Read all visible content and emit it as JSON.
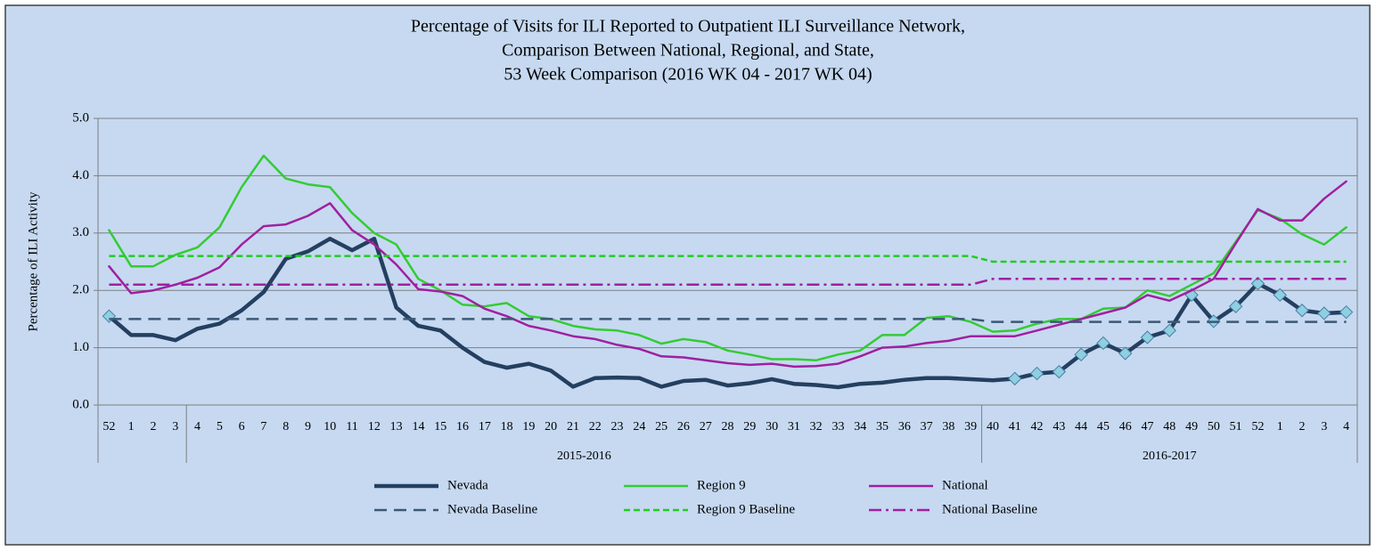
{
  "chart_data": {
    "type": "line",
    "title": [
      "Percentage of Visits for ILI Reported to Outpatient ILI Surveillance Network,",
      "Comparison Between National, Regional, and State,",
      "53 Week Comparison (2016 WK 04 - 2017 WK 04)"
    ],
    "y_label": "Percentage of ILI Activity",
    "groups": [
      {
        "label": null,
        "categories": [
          "52",
          "1",
          "2",
          "3"
        ]
      },
      {
        "label": "2015-2016",
        "categories": [
          "4",
          "5",
          "6",
          "7",
          "8",
          "9",
          "10",
          "11",
          "12",
          "13",
          "14",
          "15",
          "16",
          "17",
          "18",
          "19",
          "20",
          "21",
          "22",
          "23",
          "24",
          "25",
          "26",
          "27",
          "28",
          "29",
          "30",
          "31",
          "32",
          "33",
          "34",
          "35",
          "36",
          "37",
          "38",
          "39"
        ]
      },
      {
        "label": "2016-2017",
        "categories": [
          "40",
          "41",
          "42",
          "43",
          "44",
          "45",
          "46",
          "47",
          "48",
          "49",
          "50",
          "51",
          "52",
          "1",
          "2",
          "3",
          "4"
        ]
      }
    ],
    "ylim": [
      0,
      5
    ],
    "yticks": [
      {
        "value": 0,
        "label": "0.0"
      },
      {
        "value": 1,
        "label": "1.0"
      },
      {
        "value": 2,
        "label": "2.0"
      },
      {
        "value": 3,
        "label": "3.0"
      },
      {
        "value": 4,
        "label": "4.0"
      },
      {
        "value": 5,
        "label": "5.0"
      }
    ],
    "grid": true,
    "legend": "bottom",
    "series": [
      {
        "name": "Nevada",
        "color": "#243f60",
        "dash": "solid",
        "width": 4.5,
        "marker": "diamond",
        "marker_color": "#8ecfe0",
        "marked": [
          true,
          false,
          false,
          false,
          false,
          false,
          false,
          false,
          false,
          false,
          false,
          false,
          false,
          false,
          false,
          false,
          false,
          false,
          false,
          false,
          false,
          false,
          false,
          false,
          false,
          false,
          false,
          false,
          false,
          false,
          false,
          false,
          false,
          false,
          false,
          false,
          false,
          false,
          false,
          false,
          false,
          true,
          true,
          true,
          true,
          true,
          true,
          true,
          true,
          true,
          true,
          true,
          true,
          true,
          true,
          true,
          true
        ],
        "values": [
          1.55,
          1.22,
          1.22,
          1.13,
          1.33,
          1.42,
          1.65,
          1.97,
          2.55,
          2.68,
          2.9,
          2.7,
          2.9,
          1.7,
          1.38,
          1.3,
          1.0,
          0.75,
          0.65,
          0.72,
          0.6,
          0.32,
          0.47,
          0.48,
          0.47,
          0.32,
          0.42,
          0.44,
          0.34,
          0.38,
          0.45,
          0.37,
          0.35,
          0.31,
          0.37,
          0.39,
          0.44,
          0.47,
          0.47,
          0.45,
          0.43,
          0.46,
          0.55,
          0.58,
          0.88,
          1.08,
          0.9,
          1.18,
          1.3,
          1.92,
          1.46,
          1.72,
          2.12,
          1.92,
          1.65,
          1.6,
          1.62
        ]
      },
      {
        "name": "Region 9",
        "color": "#33cc33",
        "dash": "solid",
        "width": 2.5,
        "values": [
          3.05,
          2.42,
          2.42,
          2.62,
          2.75,
          3.1,
          3.8,
          4.35,
          3.95,
          3.85,
          3.8,
          3.35,
          3.0,
          2.8,
          2.2,
          2.0,
          1.75,
          1.72,
          1.78,
          1.55,
          1.5,
          1.38,
          1.32,
          1.3,
          1.22,
          1.07,
          1.15,
          1.1,
          0.95,
          0.88,
          0.8,
          0.8,
          0.78,
          0.88,
          0.95,
          1.22,
          1.22,
          1.52,
          1.55,
          1.45,
          1.28,
          1.3,
          1.42,
          1.5,
          1.5,
          1.68,
          1.7,
          2.0,
          1.9,
          2.1,
          2.3,
          2.85,
          3.4,
          3.25,
          2.98,
          2.8,
          3.1
        ]
      },
      {
        "name": "National",
        "color": "#a020a0",
        "dash": "solid",
        "width": 2.5,
        "values": [
          2.42,
          1.95,
          2.0,
          2.1,
          2.22,
          2.4,
          2.8,
          3.12,
          3.15,
          3.3,
          3.52,
          3.05,
          2.8,
          2.45,
          2.02,
          1.98,
          1.9,
          1.68,
          1.55,
          1.38,
          1.3,
          1.2,
          1.15,
          1.05,
          0.98,
          0.85,
          0.83,
          0.78,
          0.73,
          0.7,
          0.72,
          0.67,
          0.68,
          0.72,
          0.85,
          1.0,
          1.02,
          1.08,
          1.12,
          1.2,
          1.2,
          1.2,
          1.3,
          1.4,
          1.5,
          1.6,
          1.7,
          1.92,
          1.82,
          2.0,
          2.2,
          2.82,
          3.42,
          3.22,
          3.22,
          3.6,
          3.9
        ]
      },
      {
        "name": "Nevada Baseline",
        "color": "#3b5876",
        "dash": "long-dash",
        "width": 2.5,
        "values": [
          1.5,
          1.5,
          1.5,
          1.5,
          1.5,
          1.5,
          1.5,
          1.5,
          1.5,
          1.5,
          1.5,
          1.5,
          1.5,
          1.5,
          1.5,
          1.5,
          1.5,
          1.5,
          1.5,
          1.5,
          1.5,
          1.5,
          1.5,
          1.5,
          1.5,
          1.5,
          1.5,
          1.5,
          1.5,
          1.5,
          1.5,
          1.5,
          1.5,
          1.5,
          1.5,
          1.5,
          1.5,
          1.5,
          1.5,
          1.5,
          1.45,
          1.45,
          1.45,
          1.45,
          1.45,
          1.45,
          1.45,
          1.45,
          1.45,
          1.45,
          1.45,
          1.45,
          1.45,
          1.45,
          1.45,
          1.45,
          1.45
        ]
      },
      {
        "name": "Region 9 Baseline",
        "color": "#22cc22",
        "dash": "dash",
        "width": 2.5,
        "values": [
          2.6,
          2.6,
          2.6,
          2.6,
          2.6,
          2.6,
          2.6,
          2.6,
          2.6,
          2.6,
          2.6,
          2.6,
          2.6,
          2.6,
          2.6,
          2.6,
          2.6,
          2.6,
          2.6,
          2.6,
          2.6,
          2.6,
          2.6,
          2.6,
          2.6,
          2.6,
          2.6,
          2.6,
          2.6,
          2.6,
          2.6,
          2.6,
          2.6,
          2.6,
          2.6,
          2.6,
          2.6,
          2.6,
          2.6,
          2.6,
          2.5,
          2.5,
          2.5,
          2.5,
          2.5,
          2.5,
          2.5,
          2.5,
          2.5,
          2.5,
          2.5,
          2.5,
          2.5,
          2.5,
          2.5,
          2.5,
          2.5
        ]
      },
      {
        "name": "National Baseline",
        "color": "#a020a0",
        "dash": "dash-dot",
        "width": 2.5,
        "values": [
          2.1,
          2.1,
          2.1,
          2.1,
          2.1,
          2.1,
          2.1,
          2.1,
          2.1,
          2.1,
          2.1,
          2.1,
          2.1,
          2.1,
          2.1,
          2.1,
          2.1,
          2.1,
          2.1,
          2.1,
          2.1,
          2.1,
          2.1,
          2.1,
          2.1,
          2.1,
          2.1,
          2.1,
          2.1,
          2.1,
          2.1,
          2.1,
          2.1,
          2.1,
          2.1,
          2.1,
          2.1,
          2.1,
          2.1,
          2.1,
          2.2,
          2.2,
          2.2,
          2.2,
          2.2,
          2.2,
          2.2,
          2.2,
          2.2,
          2.2,
          2.2,
          2.2,
          2.2,
          2.2,
          2.2,
          2.2,
          2.2
        ]
      }
    ]
  }
}
